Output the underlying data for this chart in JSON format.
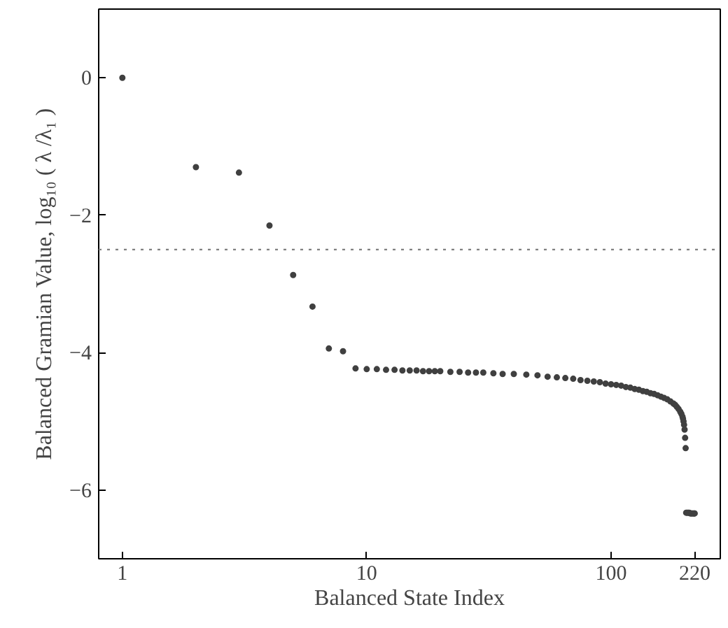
{
  "chart_data": {
    "type": "scatter",
    "xlabel": "Balanced State Index",
    "ylabel": "Balanced Gramian Value, log₁₀ ( λ /λ₁ )",
    "x": [
      1,
      2,
      3,
      4,
      5,
      6,
      7,
      8,
      9,
      10,
      11,
      12,
      13,
      14,
      15,
      16,
      17,
      18,
      19,
      20,
      22,
      24,
      26,
      28,
      30,
      33,
      36,
      40,
      45,
      50,
      55,
      60,
      65,
      70,
      75,
      80,
      85,
      90,
      95,
      100,
      105,
      110,
      115,
      120,
      125,
      130,
      135,
      140,
      145,
      150,
      155,
      160,
      165,
      170,
      175,
      180,
      183,
      186,
      189,
      192,
      194,
      196,
      197,
      198,
      199,
      200,
      201,
      202,
      203,
      205,
      207,
      209,
      211,
      213,
      215,
      217,
      219,
      220
    ],
    "series": [
      {
        "color": "#404040",
        "values": [
          0,
          -1.3,
          -1.38,
          -2.15,
          -2.87,
          -3.33,
          -3.94,
          -3.98,
          -4.23,
          -4.24,
          -4.24,
          -4.25,
          -4.25,
          -4.26,
          -4.26,
          -4.26,
          -4.27,
          -4.27,
          -4.27,
          -4.27,
          -4.28,
          -4.28,
          -4.29,
          -4.29,
          -4.29,
          -4.3,
          -4.31,
          -4.31,
          -4.32,
          -4.33,
          -4.35,
          -4.36,
          -4.37,
          -4.38,
          -4.4,
          -4.41,
          -4.42,
          -4.43,
          -4.45,
          -4.46,
          -4.47,
          -4.48,
          -4.5,
          -4.51,
          -4.53,
          -4.54,
          -4.56,
          -4.57,
          -4.59,
          -4.6,
          -4.62,
          -4.64,
          -4.66,
          -4.68,
          -4.71,
          -4.74,
          -4.76,
          -4.79,
          -4.82,
          -4.86,
          -4.89,
          -4.93,
          -4.96,
          -5.0,
          -5.05,
          -5.12,
          -5.24,
          -5.39,
          -6.33,
          -6.33,
          -6.33,
          -6.33,
          -6.34,
          -6.34,
          -6.34,
          -6.34,
          -6.34,
          -6.34
        ]
      }
    ],
    "log": "x",
    "xlim": [
      0.8,
      280
    ],
    "ylim": [
      -7,
      1
    ],
    "xticks": [
      1,
      10,
      100,
      220
    ],
    "yticks": [
      {
        "value": -6,
        "label": "−6"
      },
      {
        "value": -4,
        "label": "−4"
      },
      {
        "value": -2,
        "label": "−2"
      },
      0
    ],
    "ref_lines": [
      {
        "axis": "y",
        "value": -2.5,
        "label": null,
        "color": "#808080",
        "line_style": "dotted"
      }
    ],
    "marker": "circle",
    "grid": false
  }
}
